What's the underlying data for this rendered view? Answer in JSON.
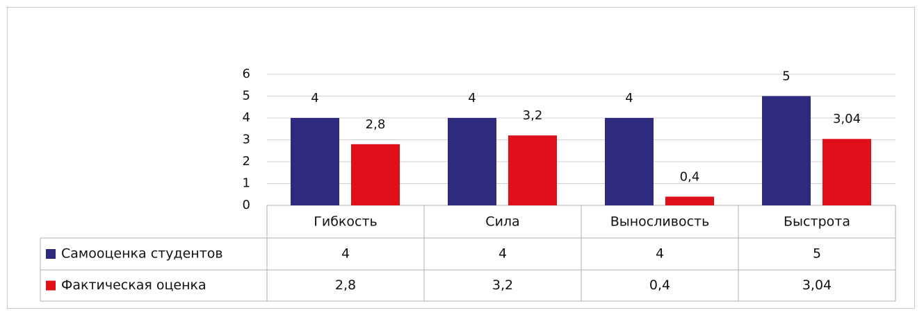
{
  "chart_data": {
    "type": "bar",
    "categories": [
      "Гибкость",
      "Сила",
      "Выносливость",
      "Быстрота"
    ],
    "series": [
      {
        "name": "Самооценка студентов",
        "color": "#2e2a7e",
        "values": [
          4,
          4,
          4,
          5
        ]
      },
      {
        "name": "Фактическая оценка",
        "color": "#e0101a",
        "values": [
          2.8,
          3.2,
          0.4,
          3.04
        ],
        "value_labels": [
          "2,8",
          "3,2",
          "0,4",
          "3,04"
        ]
      }
    ],
    "ylim": [
      0,
      6
    ],
    "yticks": [
      0,
      1,
      2,
      3,
      4,
      5,
      6
    ],
    "grid": true,
    "data_table": true
  }
}
